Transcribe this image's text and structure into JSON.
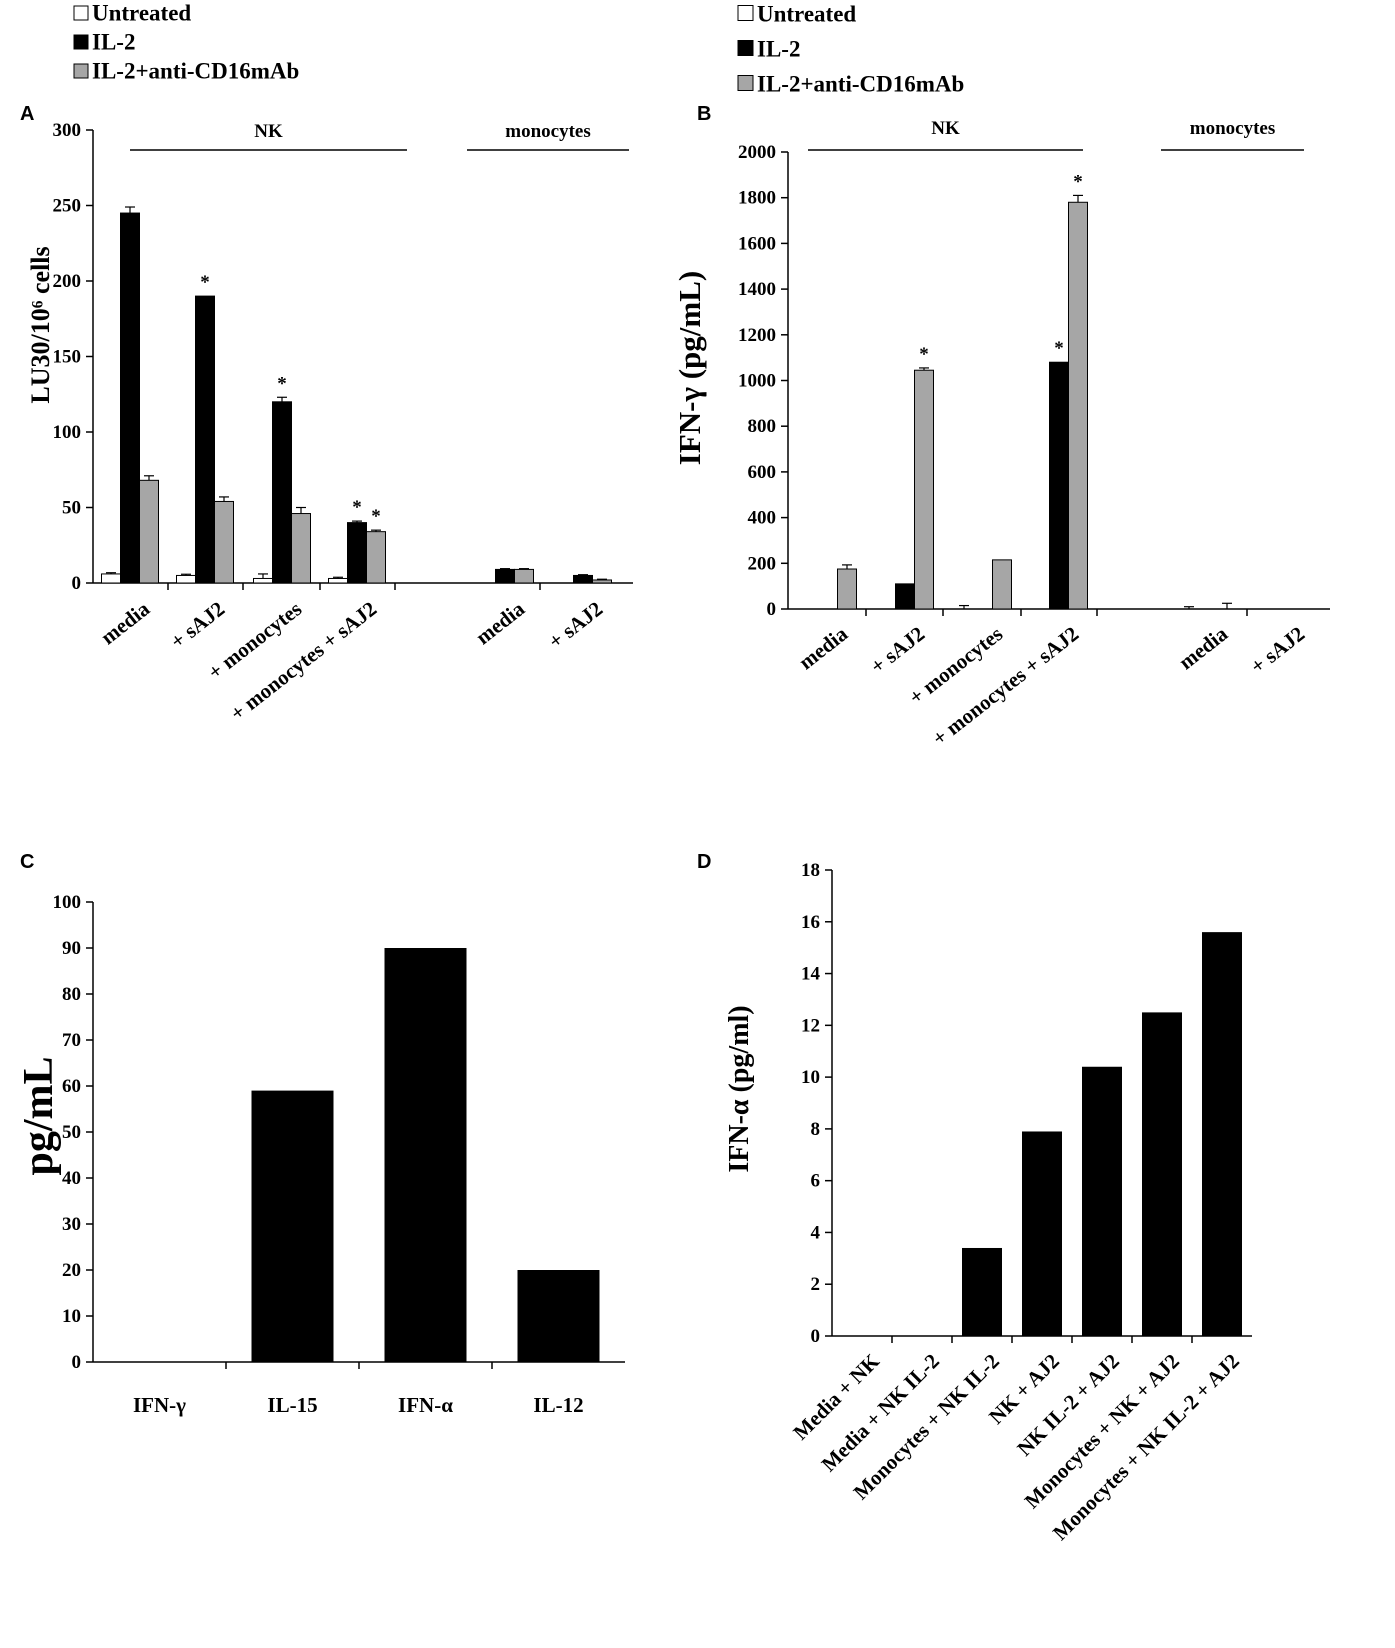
{
  "figure": {
    "chart_data": [
      {
        "panel": "A",
        "type": "bar",
        "ylabel": "LU30/10⁶ cells",
        "ylim": [
          0,
          300
        ],
        "yticks": [
          0,
          50,
          100,
          150,
          200,
          250,
          300
        ],
        "categories": [
          "media",
          "+ sAJ2",
          "+ monocytes",
          "+ monocytes + sAJ2",
          "media",
          "+ sAJ2"
        ],
        "group_labels": [
          "NK",
          "monocytes"
        ],
        "legend": [
          "Untreated",
          "IL-2",
          "IL-2+anti-CD16mAb"
        ],
        "series": [
          {
            "name": "Untreated",
            "color": "#ffffff",
            "values": [
              6,
              5,
              3,
              3,
              0,
              0
            ],
            "errors": [
              0.8,
              0.8,
              3,
              0.8,
              0,
              0
            ]
          },
          {
            "name": "IL-2",
            "color": "#000000",
            "values": [
              245,
              190,
              120,
              40,
              9,
              5
            ],
            "errors": [
              4,
              0,
              3,
              1,
              0.5,
              0.5
            ]
          },
          {
            "name": "IL-2+anti-CD16mAb",
            "color": "#a6a6a6",
            "values": [
              68,
              54,
              46,
              34,
              9,
              2
            ],
            "errors": [
              3,
              3,
              4,
              1,
              0.5,
              0.5
            ]
          }
        ],
        "significance": [
          {
            "category": 1,
            "series": 1,
            "label": "*"
          },
          {
            "category": 2,
            "series": 1,
            "label": "*"
          },
          {
            "category": 3,
            "series": 1,
            "label": "*"
          },
          {
            "category": 3,
            "series": 2,
            "label": "*"
          }
        ]
      },
      {
        "panel": "B",
        "type": "bar",
        "ylabel": "IFN-γ (pg/mL)",
        "ylim": [
          0,
          2000
        ],
        "yticks": [
          0,
          200,
          400,
          600,
          800,
          1000,
          1200,
          1400,
          1600,
          1800,
          2000
        ],
        "categories": [
          "media",
          "+ sAJ2",
          "+ monocytes",
          "+ monocytes + sAJ2",
          "media",
          "+ sAJ2"
        ],
        "group_labels": [
          "NK",
          "monocytes"
        ],
        "legend": [
          "Untreated",
          "IL-2",
          "IL-2+anti-CD16mAb"
        ],
        "series": [
          {
            "name": "Untreated",
            "color": "#ffffff",
            "values": [
              0,
              0,
              0,
              0,
              0,
              0
            ],
            "errors": [
              0,
              0,
              15,
              0,
              10,
              0
            ]
          },
          {
            "name": "IL-2",
            "color": "#000000",
            "values": [
              0,
              110,
              0,
              1080,
              0,
              0
            ],
            "errors": [
              0,
              0,
              0,
              0,
              0,
              0
            ]
          },
          {
            "name": "IL-2+anti-CD16mAb",
            "color": "#a6a6a6",
            "values": [
              175,
              1045,
              215,
              1780,
              0,
              0
            ],
            "errors": [
              18,
              10,
              0,
              30,
              25,
              0
            ]
          }
        ],
        "significance": [
          {
            "category": 1,
            "series": 2,
            "label": "*"
          },
          {
            "category": 3,
            "series": 1,
            "label": "*"
          },
          {
            "category": 3,
            "series": 2,
            "label": "*"
          }
        ]
      },
      {
        "panel": "C",
        "type": "bar",
        "ylabel": "pg/mL",
        "ylim": [
          0,
          100
        ],
        "yticks": [
          0,
          10,
          20,
          30,
          40,
          50,
          60,
          70,
          80,
          90,
          100
        ],
        "categories": [
          "IFN-γ",
          "IL-15",
          "IFN-α",
          "IL-12"
        ],
        "series": [
          {
            "name": "pg/mL",
            "color": "#000000",
            "values": [
              0,
              59,
              90,
              20
            ]
          }
        ]
      },
      {
        "panel": "D",
        "type": "bar",
        "ylabel": "IFN-α (pg/ml)",
        "ylim": [
          0,
          18
        ],
        "yticks": [
          0,
          2,
          4,
          6,
          8,
          10,
          12,
          14,
          16,
          18
        ],
        "categories": [
          "Media + NK",
          "Media + NK IL-2",
          "Monocytes + NK IL-2",
          "NK + AJ2",
          "NK IL-2 + AJ2",
          "Monocytes + NK + AJ2",
          "Monocytes + NK IL-2 + AJ2"
        ],
        "series": [
          {
            "name": "IFN-α",
            "color": "#000000",
            "values": [
              0,
              0,
              3.4,
              7.9,
              10.4,
              12.5,
              15.6
            ]
          }
        ]
      }
    ]
  }
}
